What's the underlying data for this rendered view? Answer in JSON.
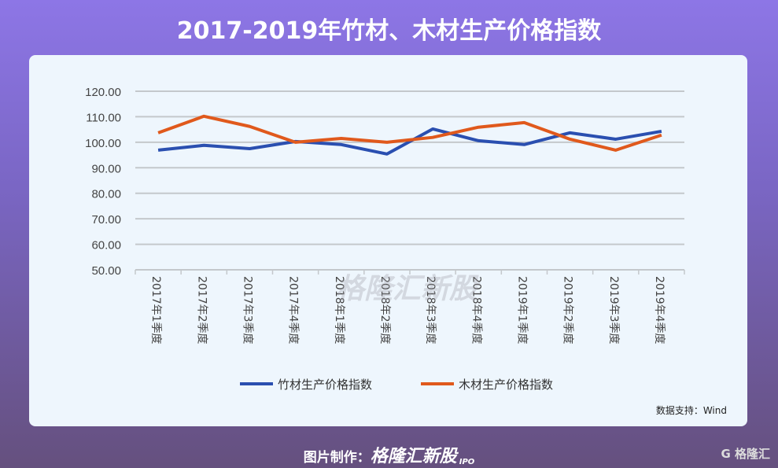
{
  "title": "2017-2019年竹材、木材生产价格指数",
  "source": "数据支持：Wind",
  "credit_label": "图片制作：",
  "brand": "格隆汇新股",
  "brand_sub": "IPO",
  "logo": "格隆汇",
  "watermark": "格隆汇新股",
  "chart_data": {
    "type": "line",
    "categories": [
      "2017年1季度",
      "2017年2季度",
      "2017年3季度",
      "2017年4季度",
      "2018年1季度",
      "2018年2季度",
      "2018年3季度",
      "2018年4季度",
      "2019年1季度",
      "2019年2季度",
      "2019年3季度",
      "2019年4季度"
    ],
    "ylim": [
      50,
      120
    ],
    "yticks": [
      "50.00",
      "60.00",
      "70.00",
      "80.00",
      "90.00",
      "100.00",
      "110.00",
      "120.00"
    ],
    "grid": true,
    "legend_position": "bottom",
    "series": [
      {
        "name": "竹材生产价格指数",
        "color": "#2a4fb0",
        "values": [
          96.9,
          98.8,
          97.5,
          100.3,
          99.1,
          95.4,
          105.2,
          100.6,
          99.1,
          103.7,
          101.2,
          104.3
        ]
      },
      {
        "name": "木材生产价格指数",
        "color": "#e0591c",
        "values": [
          103.7,
          110.2,
          106.2,
          100.0,
          101.5,
          100.0,
          101.9,
          105.9,
          107.7,
          101.2,
          96.9,
          102.8
        ]
      }
    ]
  }
}
